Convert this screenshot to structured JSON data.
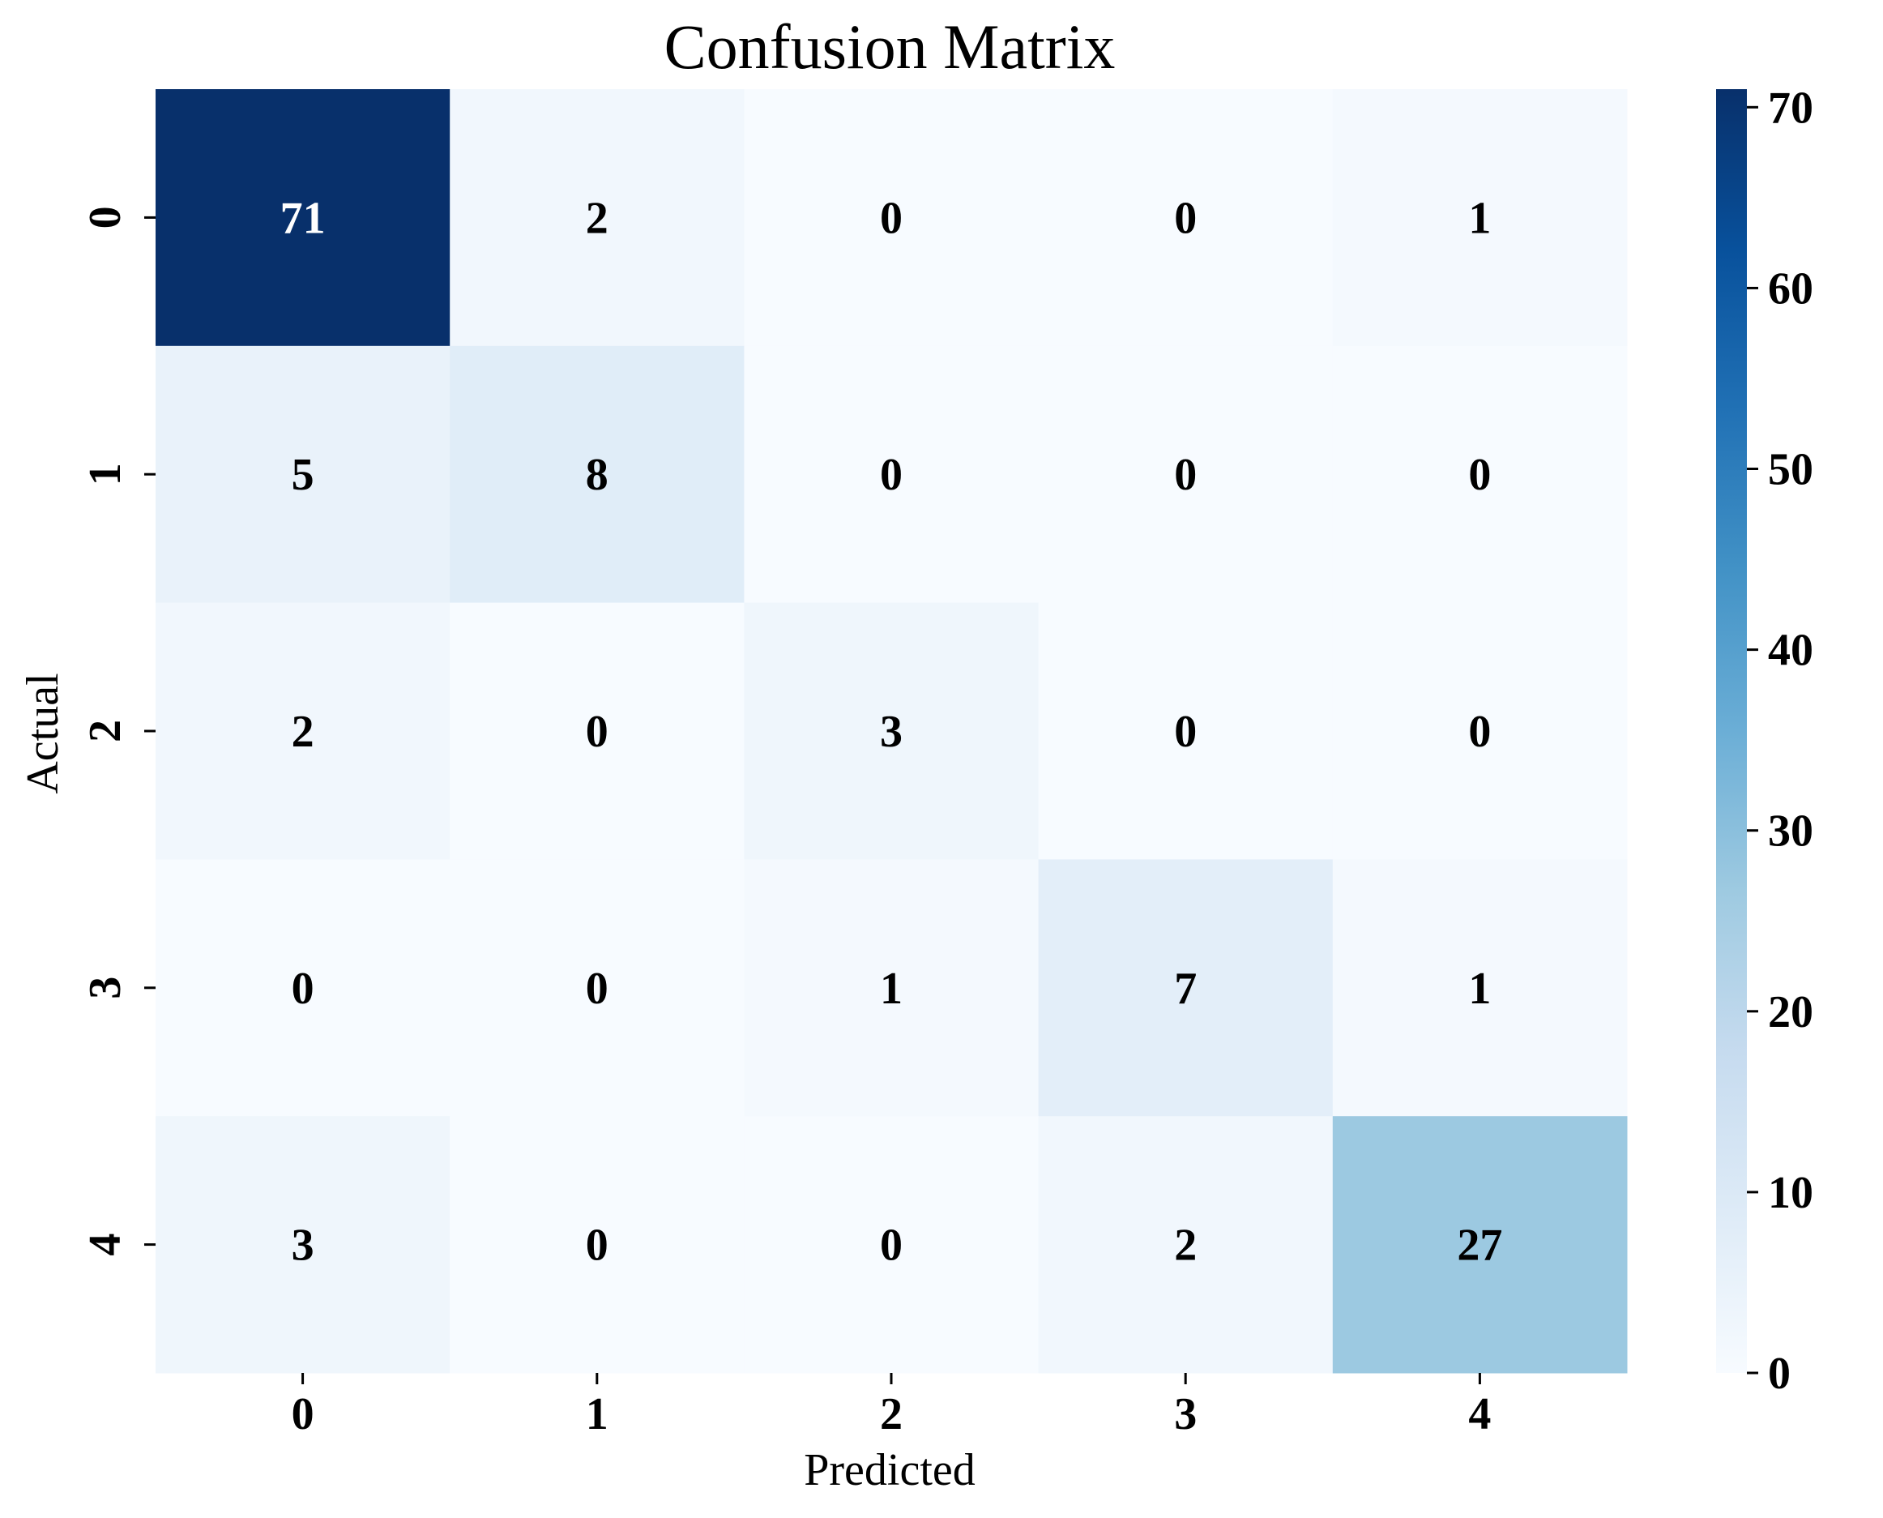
{
  "chart_data": {
    "type": "heatmap",
    "title": "Confusion Matrix",
    "xlabel": "Predicted",
    "ylabel": "Actual",
    "x_categories": [
      "0",
      "1",
      "2",
      "3",
      "4"
    ],
    "y_categories": [
      "0",
      "1",
      "2",
      "3",
      "4"
    ],
    "values": [
      [
        71,
        2,
        0,
        0,
        1
      ],
      [
        5,
        8,
        0,
        0,
        0
      ],
      [
        2,
        0,
        3,
        0,
        0
      ],
      [
        0,
        0,
        1,
        7,
        1
      ],
      [
        3,
        0,
        0,
        2,
        27
      ]
    ],
    "colorbar": {
      "range": [
        0,
        71
      ],
      "ticks": [
        0,
        10,
        20,
        30,
        40,
        50,
        60,
        70
      ],
      "tick_labels": [
        "0",
        "10",
        "20",
        "30",
        "40",
        "50",
        "60",
        "70"
      ]
    },
    "colormap": "Blues",
    "colormap_stops": [
      "#f7fbff",
      "#deebf7",
      "#c6dbef",
      "#9ecae1",
      "#6baed6",
      "#4292c6",
      "#2171b5",
      "#08519c",
      "#08306b"
    ],
    "text_colors": {
      "light_cells": "#000000",
      "dark_cells": "#ffffff"
    }
  }
}
